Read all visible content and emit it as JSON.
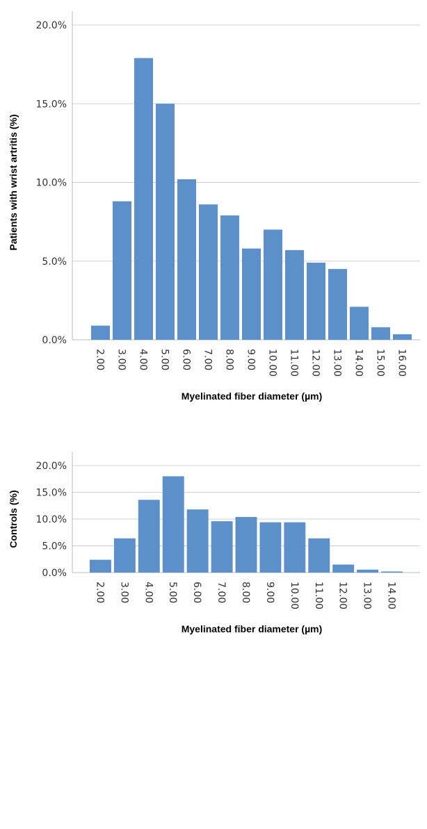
{
  "chart_data": [
    {
      "type": "bar",
      "xlabel": "Myelinated fiber diameter (µm)",
      "ylabel": "Patients with wrist artritis (%)",
      "ylim": [
        0,
        20
      ],
      "grid": true,
      "bar_color": "#5b90cb",
      "y_ticks": [
        "0.0%",
        "5.0%",
        "10.0%",
        "15.0%",
        "20.0%"
      ],
      "categories": [
        "2.00",
        "3.00",
        "4.00",
        "5.00",
        "6.00",
        "7.00",
        "8.00",
        "9.00",
        "10.00",
        "11.00",
        "12.00",
        "13.00",
        "14.00",
        "15.00",
        "16.00"
      ],
      "values": [
        0.9,
        8.8,
        17.9,
        15.0,
        10.2,
        8.6,
        7.9,
        5.8,
        7.0,
        5.7,
        4.9,
        4.5,
        2.1,
        0.8,
        0.35
      ]
    },
    {
      "type": "bar",
      "xlabel": "Myelinated fiber diameter (µm)",
      "ylabel": "Controls (%)",
      "ylim": [
        0,
        20
      ],
      "grid": true,
      "bar_color": "#5b90cb",
      "y_ticks": [
        "0.0%",
        "5.0%",
        "10.0%",
        "15.0%",
        "20.0%"
      ],
      "categories": [
        "2.00",
        "3.00",
        "4.00",
        "5.00",
        "6.00",
        "7.00",
        "8.00",
        "9.00",
        "10.00",
        "11.00",
        "12.00",
        "13.00",
        "14.00"
      ],
      "values": [
        2.4,
        6.4,
        13.6,
        18.0,
        11.8,
        9.6,
        10.4,
        9.4,
        9.4,
        6.4,
        1.5,
        0.55,
        0.2
      ]
    }
  ]
}
